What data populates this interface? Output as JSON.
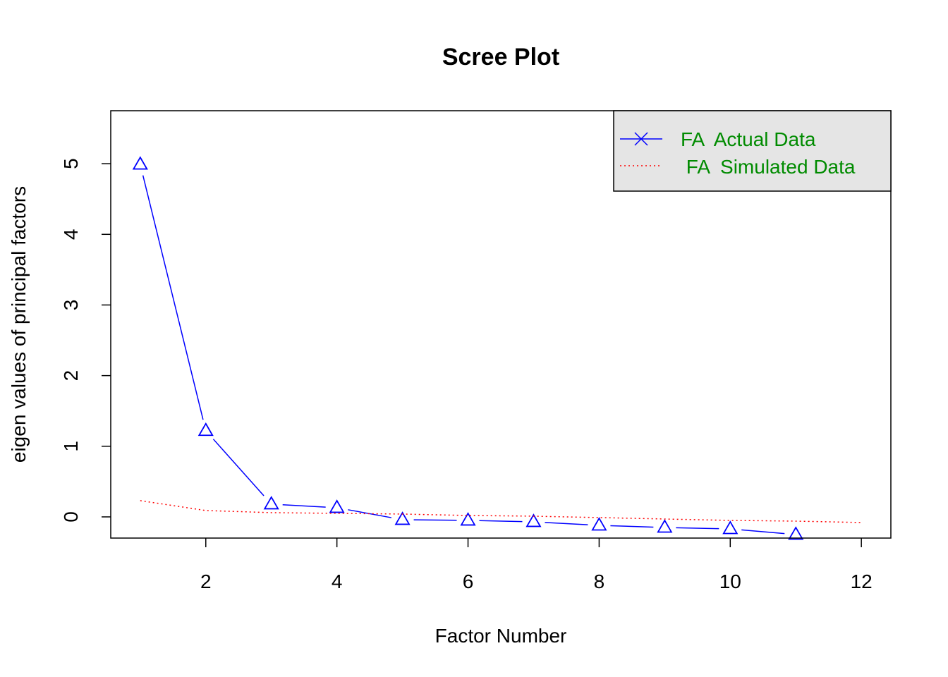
{
  "chart_data": {
    "type": "line",
    "title": "Scree Plot",
    "xlabel": "Factor Number",
    "ylabel": "eigen values of principal factors",
    "xlim": [
      0.55,
      12.45
    ],
    "ylim": [
      -0.3,
      5.75
    ],
    "xticks": [
      2,
      4,
      6,
      8,
      10,
      12
    ],
    "xtick_labels": [
      "2",
      "4",
      "6",
      "8",
      "10",
      "12"
    ],
    "yticks": [
      0,
      1,
      2,
      3,
      4,
      5
    ],
    "ytick_labels": [
      "0",
      "1",
      "2",
      "3",
      "4",
      "5"
    ],
    "grid": false,
    "legend_position": "top-right",
    "series": [
      {
        "name": "FA  Actual Data",
        "color": "#0000FF",
        "line_style": "solid",
        "marker": "triangle",
        "x": [
          1,
          2,
          3,
          4,
          5,
          6,
          7,
          8,
          9,
          10,
          11
        ],
        "values": [
          4.99,
          1.22,
          0.18,
          0.13,
          -0.04,
          -0.05,
          -0.07,
          -0.12,
          -0.15,
          -0.17,
          -0.25
        ]
      },
      {
        "name": " FA  Simulated Data",
        "color": "#FF0000",
        "line_style": "dotted",
        "marker": "none",
        "x": [
          1,
          2,
          3,
          4,
          5,
          6,
          7,
          8,
          9,
          10,
          11,
          12
        ],
        "values": [
          0.23,
          0.09,
          0.06,
          0.05,
          0.04,
          0.02,
          0.01,
          -0.01,
          -0.03,
          -0.05,
          -0.06,
          -0.08
        ]
      }
    ]
  },
  "legend": {
    "background": "#E5E5E5",
    "text_color": "#008B00"
  }
}
